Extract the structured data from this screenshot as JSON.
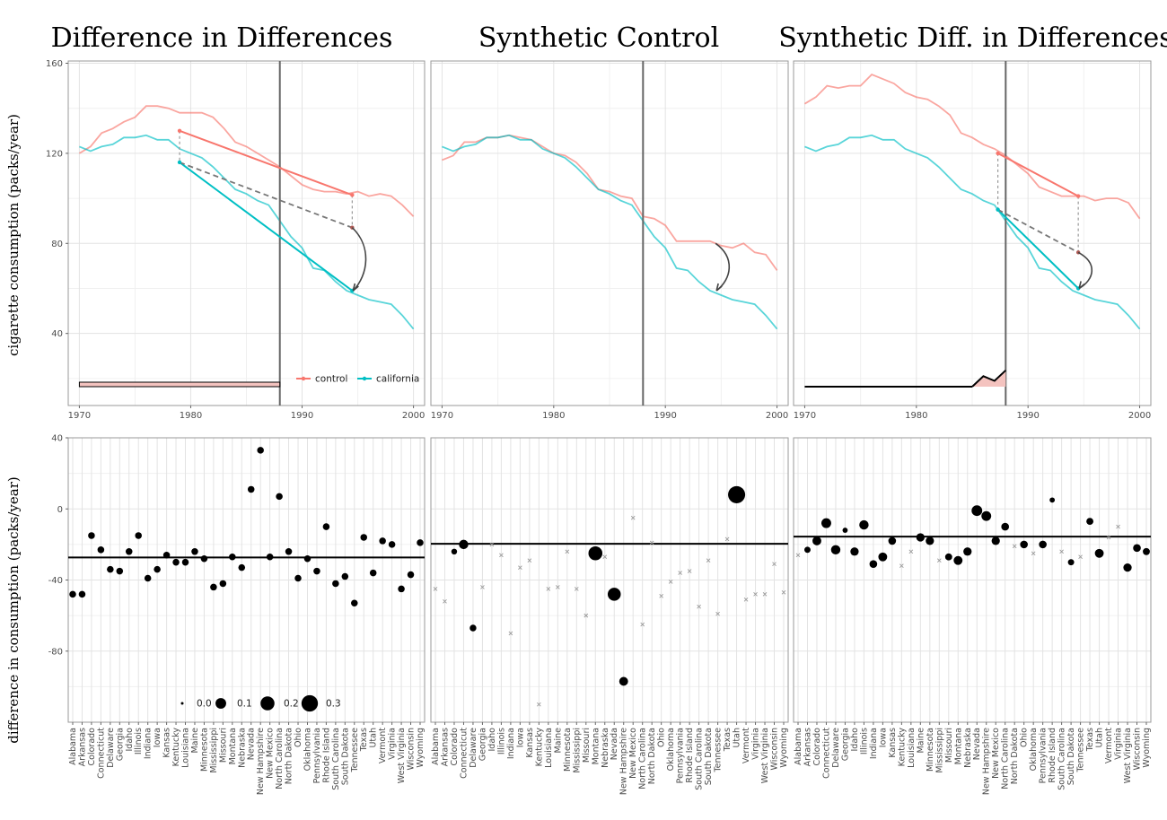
{
  "figure": {
    "titles": [
      "Difference in Differences",
      "Synthetic Control",
      "Synthetic Diff. in Differences"
    ],
    "ylabel_top": "cigarette consumption (packs/year)",
    "ylabel_bottom": "difference in consumption (packs/year)"
  },
  "chart_data": [
    {
      "type": "line",
      "panel": "Difference in Differences",
      "x": [
        1970,
        1971,
        1972,
        1973,
        1974,
        1975,
        1976,
        1977,
        1978,
        1979,
        1980,
        1981,
        1982,
        1983,
        1984,
        1985,
        1986,
        1987,
        1988,
        1989,
        1990,
        1991,
        1992,
        1993,
        1994,
        1995,
        1996,
        1997,
        1998,
        1999,
        2000
      ],
      "series": [
        {
          "name": "control",
          "color": "#F8766D",
          "values": [
            120,
            123,
            129,
            131,
            134,
            136,
            141,
            141,
            140,
            138,
            138,
            138,
            136,
            131,
            125,
            123,
            120,
            117,
            114,
            110,
            106,
            104,
            103,
            103,
            102,
            103,
            101,
            102,
            101,
            97,
            92
          ]
        },
        {
          "name": "california",
          "color": "#00BFC4",
          "values": [
            123,
            121,
            123,
            124,
            127,
            127,
            128,
            126,
            126,
            122,
            120,
            118,
            114,
            109,
            104,
            102,
            99,
            97,
            90,
            83,
            78,
            69,
            68,
            63,
            59,
            57,
            55,
            54,
            53,
            48,
            42
          ]
        }
      ],
      "annotations": {
        "control_segment": [
          [
            1979,
            130
          ],
          [
            1994.5,
            101.5
          ]
        ],
        "california_segment": [
          [
            1979,
            116
          ],
          [
            1994.5,
            59
          ]
        ],
        "counterfactual_segment": [
          [
            1979,
            116
          ],
          [
            1994.5,
            87
          ]
        ],
        "effect_arrow": [
          [
            1994.5,
            87
          ],
          [
            1994.5,
            59
          ]
        ],
        "treatment_year": 1988,
        "time_weights": {
          "uniform_pre_period": [
            1970,
            1988
          ]
        }
      },
      "xlim": [
        1969,
        2001
      ],
      "ylim": [
        8,
        161
      ],
      "xticks": [
        1970,
        1980,
        1990,
        2000
      ],
      "yticks": [
        40,
        80,
        120,
        160
      ],
      "legend": [
        "control",
        "california"
      ],
      "legend_position": "bottom-right",
      "grid": true
    },
    {
      "type": "line",
      "panel": "Synthetic Control",
      "x": [
        1970,
        1971,
        1972,
        1973,
        1974,
        1975,
        1976,
        1977,
        1978,
        1979,
        1980,
        1981,
        1982,
        1983,
        1984,
        1985,
        1986,
        1987,
        1988,
        1989,
        1990,
        1991,
        1992,
        1993,
        1994,
        1995,
        1996,
        1997,
        1998,
        1999,
        2000
      ],
      "series": [
        {
          "name": "control",
          "color": "#F8766D",
          "values": [
            117,
            119,
            125,
            125,
            127,
            127,
            128,
            127,
            126,
            123,
            120,
            119,
            116,
            111,
            104,
            103,
            101,
            100,
            92,
            91,
            88,
            81,
            81,
            81,
            81,
            79,
            78,
            80,
            76,
            75,
            68
          ]
        },
        {
          "name": "california",
          "color": "#00BFC4",
          "values": [
            123,
            121,
            123,
            124,
            127,
            127,
            128,
            126,
            126,
            122,
            120,
            118,
            114,
            109,
            104,
            102,
            99,
            97,
            90,
            83,
            78,
            69,
            68,
            63,
            59,
            57,
            55,
            54,
            53,
            48,
            42
          ]
        }
      ],
      "annotations": {
        "effect_arrow": [
          [
            1994.5,
            80
          ],
          [
            1994.5,
            59
          ]
        ],
        "treatment_year": 1988
      },
      "xlim": [
        1969,
        2001
      ],
      "ylim": [
        8,
        161
      ],
      "xticks": [
        1970,
        1980,
        1990,
        2000
      ],
      "yticks": [],
      "grid": true
    },
    {
      "type": "line",
      "panel": "Synthetic Diff. in Differences",
      "x": [
        1970,
        1971,
        1972,
        1973,
        1974,
        1975,
        1976,
        1977,
        1978,
        1979,
        1980,
        1981,
        1982,
        1983,
        1984,
        1985,
        1986,
        1987,
        1988,
        1989,
        1990,
        1991,
        1992,
        1993,
        1994,
        1995,
        1996,
        1997,
        1998,
        1999,
        2000
      ],
      "series": [
        {
          "name": "control",
          "color": "#F8766D",
          "values": [
            142,
            145,
            150,
            149,
            150,
            150,
            155,
            153,
            151,
            147,
            145,
            144,
            141,
            137,
            129,
            127,
            124,
            122,
            119,
            115,
            111,
            105,
            103,
            101,
            101,
            101,
            99,
            100,
            100,
            98,
            91
          ]
        },
        {
          "name": "california",
          "color": "#00BFC4",
          "values": [
            123,
            121,
            123,
            124,
            127,
            127,
            128,
            126,
            126,
            122,
            120,
            118,
            114,
            109,
            104,
            102,
            99,
            97,
            90,
            83,
            78,
            69,
            68,
            63,
            59,
            57,
            55,
            54,
            53,
            48,
            42
          ]
        }
      ],
      "annotations": {
        "control_segment": [
          [
            1987.3,
            120
          ],
          [
            1994.5,
            101
          ]
        ],
        "california_segment": [
          [
            1987.3,
            95
          ],
          [
            1994.5,
            60
          ]
        ],
        "counterfactual_segment": [
          [
            1987.3,
            95
          ],
          [
            1994.5,
            76
          ]
        ],
        "effect_arrow": [
          [
            1994.5,
            76
          ],
          [
            1994.5,
            60
          ]
        ],
        "treatment_year": 1988,
        "time_weights": {
          "1985": 0,
          "1986": 0.45,
          "1987": 0.25,
          "1988": 0.7
        }
      },
      "xlim": [
        1969,
        2001
      ],
      "ylim": [
        8,
        161
      ],
      "xticks": [
        1970,
        1980,
        1990,
        2000
      ],
      "yticks": [],
      "grid": true
    },
    {
      "type": "scatter",
      "panel": "Difference in Differences (unit estimates)",
      "categories": [
        "Alabama",
        "Arkansas",
        "Colorado",
        "Connecticut",
        "Delaware",
        "Georgia",
        "Idaho",
        "Illinois",
        "Indiana",
        "Iowa",
        "Kansas",
        "Kentucky",
        "Louisiana",
        "Maine",
        "Minnesota",
        "Mississippi",
        "Missouri",
        "Montana",
        "Nebraska",
        "Nevada",
        "New Hampshire",
        "New Mexico",
        "North Carolina",
        "North Dakota",
        "Ohio",
        "Oklahoma",
        "Pennsylvania",
        "Rhode Island",
        "South Carolina",
        "South Dakota",
        "Tennessee",
        "Texas",
        "Utah",
        "Vermont",
        "Virginia",
        "West Virginia",
        "Wisconsin",
        "Wyoming"
      ],
      "values": [
        -48,
        -48,
        -15,
        -23,
        -34,
        -35,
        -24,
        -15,
        -39,
        -34,
        -26,
        -30,
        -30,
        -24,
        -28,
        -44,
        -42,
        -27,
        -33,
        11,
        33,
        -27,
        7,
        -24,
        -39,
        -28,
        -35,
        -10,
        -42,
        -38,
        -53,
        -16,
        -36,
        -18,
        -20,
        -45,
        -37,
        -19
      ],
      "weights": [
        0.026,
        0.026,
        0.026,
        0.026,
        0.026,
        0.026,
        0.026,
        0.026,
        0.026,
        0.026,
        0.026,
        0.026,
        0.026,
        0.026,
        0.026,
        0.026,
        0.026,
        0.026,
        0.026,
        0.026,
        0.026,
        0.026,
        0.026,
        0.026,
        0.026,
        0.026,
        0.026,
        0.026,
        0.026,
        0.026,
        0.026,
        0.026,
        0.026,
        0.026,
        0.026,
        0.026,
        0.026,
        0.026
      ],
      "hline": -27.3,
      "ylim": [
        -120,
        40
      ],
      "yticks": [
        40,
        0,
        -40,
        -80
      ],
      "size_legend": [
        "0.0",
        "0.1",
        "0.2",
        "0.3"
      ],
      "legend_position": "bottom-left",
      "grid": true
    },
    {
      "type": "scatter",
      "panel": "Synthetic Control (unit estimates)",
      "categories": [
        "Alabama",
        "Arkansas",
        "Colorado",
        "Connecticut",
        "Delaware",
        "Georgia",
        "Idaho",
        "Illinois",
        "Indiana",
        "Iowa",
        "Kansas",
        "Kentucky",
        "Louisiana",
        "Maine",
        "Minnesota",
        "Mississippi",
        "Missouri",
        "Montana",
        "Nebraska",
        "Nevada",
        "New Hampshire",
        "New Mexico",
        "North Carolina",
        "North Dakota",
        "Ohio",
        "Oklahoma",
        "Pennsylvania",
        "Rhode Island",
        "South Carolina",
        "South Dakota",
        "Tennessee",
        "Texas",
        "Utah",
        "Vermont",
        "Virginia",
        "West Virginia",
        "Wisconsin",
        "Wyoming"
      ],
      "values": [
        -45,
        -52,
        -24,
        -20,
        -67,
        -44,
        -20,
        -26,
        -70,
        -33,
        -29,
        -110,
        -45,
        -44,
        -24,
        -45,
        -60,
        -25,
        -27,
        -48,
        -97,
        -5,
        -65,
        -19,
        -49,
        -41,
        -36,
        -35,
        -55,
        -29,
        -59,
        -17,
        8,
        -51,
        -48,
        -48,
        -31,
        -47
      ],
      "weights": [
        0,
        0,
        0.015,
        0.07,
        0.025,
        0,
        0,
        0,
        0,
        0,
        0,
        0,
        0,
        0,
        0,
        0,
        0,
        0.2,
        0,
        0.17,
        0.06,
        0,
        0,
        0,
        0,
        0,
        0,
        0,
        0,
        0,
        0,
        0,
        0.33,
        0,
        0,
        0,
        0,
        0
      ],
      "hline": -19.6,
      "ylim": [
        -120,
        40
      ],
      "grid": true
    },
    {
      "type": "scatter",
      "panel": "Synthetic Diff. in Differences (unit estimates)",
      "categories": [
        "Alabama",
        "Arkansas",
        "Colorado",
        "Connecticut",
        "Delaware",
        "Georgia",
        "Idaho",
        "Illinois",
        "Indiana",
        "Iowa",
        "Kansas",
        "Kentucky",
        "Louisiana",
        "Maine",
        "Minnesota",
        "Mississippi",
        "Missouri",
        "Montana",
        "Nebraska",
        "Nevada",
        "New Hampshire",
        "New Mexico",
        "North Carolina",
        "North Dakota",
        "Ohio",
        "Oklahoma",
        "Pennsylvania",
        "Rhode Island",
        "South Carolina",
        "South Dakota",
        "Tennessee",
        "Texas",
        "Utah",
        "Vermont",
        "Virginia",
        "West Virginia",
        "Wisconsin",
        "Wyoming"
      ],
      "values": [
        -26,
        -23,
        -18,
        -8,
        -23,
        -12,
        -24,
        -9,
        -31,
        -27,
        -18,
        -32,
        -24,
        -16,
        -18,
        -29,
        -27,
        -29,
        -24,
        -1,
        -4,
        -18,
        -10,
        -21,
        -20,
        -25,
        -20,
        5,
        -24,
        -30,
        -27,
        -7,
        -25,
        -16,
        -10,
        -33,
        -22,
        -24
      ],
      "weights": [
        0,
        0.02,
        0.06,
        0.08,
        0.07,
        0.01,
        0.05,
        0.07,
        0.04,
        0.06,
        0.04,
        0,
        0,
        0.05,
        0.05,
        0,
        0.03,
        0.06,
        0.05,
        0.1,
        0.08,
        0.05,
        0.04,
        0,
        0.04,
        0,
        0.04,
        0.01,
        0,
        0.02,
        0,
        0.03,
        0.06,
        0,
        0,
        0.05,
        0.04,
        0.03
      ],
      "hline": -15.6,
      "ylim": [
        -120,
        40
      ],
      "grid": true
    }
  ]
}
